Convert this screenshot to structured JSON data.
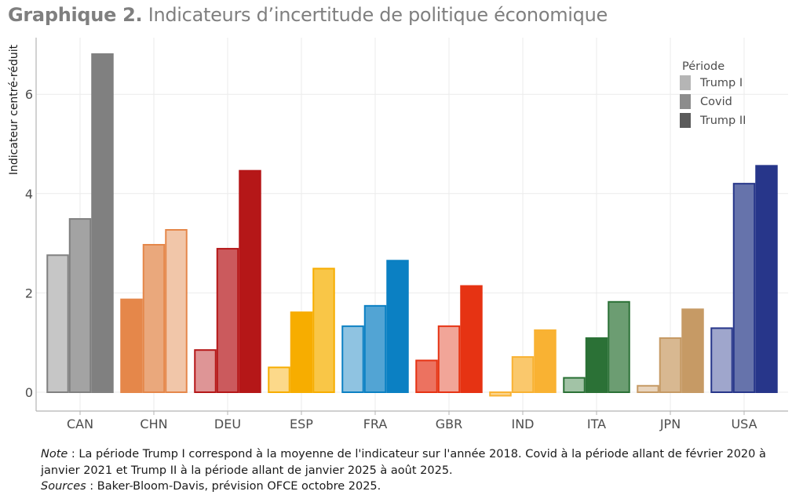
{
  "title": {
    "bold": "Graphique 2.",
    "text": "Indicateurs d’incertitude de politique économique"
  },
  "chart_data": {
    "type": "bar",
    "title": "Graphique 2. Indicateurs d’incertitude de politique économique",
    "xlabel": "",
    "ylabel": "Indicateur centré-réduit",
    "ylim": [
      -0.4,
      7.0
    ],
    "yticks": [
      0,
      2,
      4,
      6
    ],
    "grid": true,
    "legend": {
      "title": "Période",
      "position": "top-right",
      "entries": [
        "Trump I",
        "Covid",
        "Trump II"
      ],
      "swatch_colors": [
        "#b5b5b5",
        "#8c8c8c",
        "#5a5a5a"
      ]
    },
    "categories": [
      "CAN",
      "CHN",
      "DEU",
      "ESP",
      "FRA",
      "GBR",
      "IND",
      "ITA",
      "JPN",
      "USA"
    ],
    "series": [
      {
        "name": "Trump I",
        "values": [
          2.76,
          1.87,
          0.85,
          0.5,
          1.33,
          0.64,
          -0.07,
          0.29,
          0.13,
          1.29
        ]
      },
      {
        "name": "Covid",
        "values": [
          3.49,
          2.97,
          2.89,
          1.61,
          1.74,
          1.33,
          0.71,
          1.09,
          1.09,
          4.2
        ]
      },
      {
        "name": "Trump II",
        "values": [
          6.81,
          3.27,
          4.46,
          2.49,
          2.65,
          2.14,
          1.25,
          1.82,
          1.67,
          4.56
        ]
      }
    ],
    "colors": {
      "CAN": {
        "stroke": "#808080",
        "fills": [
          "#c6c6c6",
          "#a3a3a3",
          "#808080"
        ]
      },
      "CHN": {
        "stroke": "#e5874a",
        "fills": [
          "#e5874a",
          "#eaa87c",
          "#f1c6a9"
        ]
      },
      "DEU": {
        "stroke": "#b51718",
        "fills": [
          "#de9596",
          "#cb5a5d",
          "#b51718"
        ]
      },
      "ESP": {
        "stroke": "#f7ad00",
        "fills": [
          "#fcd98a",
          "#f7ad00",
          "#f9c647"
        ]
      },
      "FRA": {
        "stroke": "#0b80c3",
        "fills": [
          "#8fc3e1",
          "#52a4d4",
          "#0b80c3"
        ]
      },
      "GBR": {
        "stroke": "#e63313",
        "fills": [
          "#ec7260",
          "#f1a598",
          "#e63313"
        ]
      },
      "IND": {
        "stroke": "#f9b233",
        "fills": [
          "#fbd58e",
          "#fac86c",
          "#f9b233"
        ]
      },
      "ITA": {
        "stroke": "#2b7136",
        "fills": [
          "#a2c3a6",
          "#2b7136",
          "#6c9d72"
        ]
      },
      "JPN": {
        "stroke": "#c69a65",
        "fills": [
          "#e8d4bd",
          "#d8b891",
          "#c69a65"
        ]
      },
      "USA": {
        "stroke": "#27368a",
        "fills": [
          "#9fa6cc",
          "#6673ab",
          "#27368a"
        ]
      }
    }
  },
  "notes": {
    "note_label": "Note",
    "note_text": " : La période Trump I correspond à la moyenne de l'indicateur sur l'année 2018. Covid à la période allant de février 2020 à janvier 2021 et Trump II à la période allant de janvier 2025 à août 2025.",
    "sources_label": "Sources",
    "sources_text": " : Baker-Bloom-Davis, prévision OFCE octobre 2025."
  }
}
